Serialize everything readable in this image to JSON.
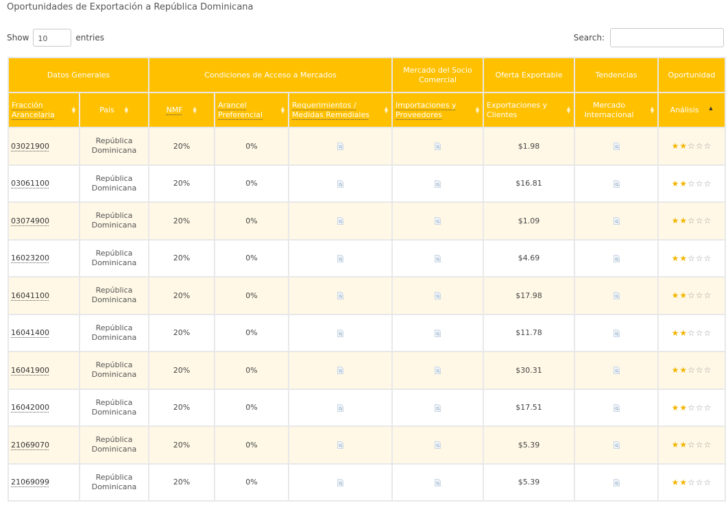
{
  "page": {
    "title": "Oportunidades de Exportación a República Dominicana"
  },
  "controls": {
    "show_label": "Show",
    "entries_value": "10",
    "entries_label": "entries",
    "search_label": "Search:",
    "search_value": ""
  },
  "header_groups": [
    {
      "label": "Datos Generales"
    },
    {
      "label": "Condiciones de Acceso a Mercados"
    },
    {
      "label": "Mercado del Socio Comercial"
    },
    {
      "label": "Oferta Exportable"
    },
    {
      "label": "Tendencias"
    },
    {
      "label": "Oportunidad"
    }
  ],
  "columns": [
    {
      "label": "Fracción Arancelaria"
    },
    {
      "label": "País"
    },
    {
      "label": "NMF"
    },
    {
      "label": "Arancel Preferencial"
    },
    {
      "label": "Requerimientos / Medidas Remediales"
    },
    {
      "label": "Importaciones y Proveedores"
    },
    {
      "label": "Exportaciones y Clientes"
    },
    {
      "label": "Mercado Internacional"
    },
    {
      "label": "Análisis"
    }
  ],
  "icons": {
    "doc": "document-icon",
    "sort": "sort-icon",
    "star_filled": "star-filled-icon",
    "star_empty": "star-empty-icon"
  },
  "colors": {
    "header_bg": "#ffc000",
    "row_alt_bg": "#fff8e6",
    "star_filled": "#f2b500",
    "star_empty": "#999999"
  },
  "rows": [
    {
      "code": "03021900",
      "country": "República Dominicana",
      "nmf": "20%",
      "preferencial": "0%",
      "exportaciones": "$1.98",
      "stars_filled": 2,
      "stars_total": 5
    },
    {
      "code": "03061100",
      "country": "República Dominicana",
      "nmf": "20%",
      "preferencial": "0%",
      "exportaciones": "$16.81",
      "stars_filled": 2,
      "stars_total": 5
    },
    {
      "code": "03074900",
      "country": "República Dominicana",
      "nmf": "20%",
      "preferencial": "0%",
      "exportaciones": "$1.09",
      "stars_filled": 2,
      "stars_total": 5
    },
    {
      "code": "16023200",
      "country": "República Dominicana",
      "nmf": "20%",
      "preferencial": "0%",
      "exportaciones": "$4.69",
      "stars_filled": 2,
      "stars_total": 5
    },
    {
      "code": "16041100",
      "country": "República Dominicana",
      "nmf": "20%",
      "preferencial": "0%",
      "exportaciones": "$17.98",
      "stars_filled": 2,
      "stars_total": 5
    },
    {
      "code": "16041400",
      "country": "República Dominicana",
      "nmf": "20%",
      "preferencial": "0%",
      "exportaciones": "$11.78",
      "stars_filled": 2,
      "stars_total": 5
    },
    {
      "code": "16041900",
      "country": "República Dominicana",
      "nmf": "20%",
      "preferencial": "0%",
      "exportaciones": "$30.31",
      "stars_filled": 2,
      "stars_total": 5
    },
    {
      "code": "16042000",
      "country": "República Dominicana",
      "nmf": "20%",
      "preferencial": "0%",
      "exportaciones": "$17.51",
      "stars_filled": 2,
      "stars_total": 5
    },
    {
      "code": "21069070",
      "country": "República Dominicana",
      "nmf": "20%",
      "preferencial": "0%",
      "exportaciones": "$5.39",
      "stars_filled": 2,
      "stars_total": 5
    },
    {
      "code": "21069099",
      "country": "República Dominicana",
      "nmf": "20%",
      "preferencial": "0%",
      "exportaciones": "$5.39",
      "stars_filled": 2,
      "stars_total": 5
    }
  ]
}
